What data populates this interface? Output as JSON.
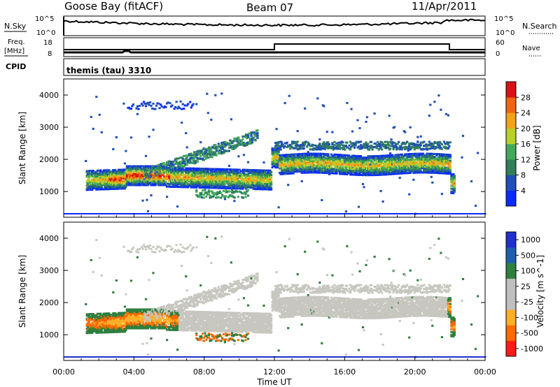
{
  "header": {
    "station": "Goose Bay (fitACF)",
    "beam": "Beam 07",
    "date": "11/Apr/2011"
  },
  "top_panels": {
    "nsky_label": "N.Sky",
    "nsearch_label": "N.Search",
    "nsky_ticks": [
      "10^5",
      "10^0"
    ],
    "nsearch_ticks": [
      "10^5",
      "10^0"
    ],
    "freq_label": "Freq.",
    "freq_unit": "[MHz]",
    "freq_ticks": [
      "18",
      "8"
    ],
    "nave_label": "Nave",
    "nave_ticks": [
      "60",
      "0"
    ],
    "cpid_label": "CPID",
    "cpid_value": "themis (tau) 3310"
  },
  "colors": {
    "power_scale": [
      "#0a2bff",
      "#1f4fb8",
      "#2f7f5a",
      "#44a85a",
      "#b8cf2e",
      "#f1a21a",
      "#ee6611",
      "#d61414"
    ],
    "velocity_scale": [
      "#ff1a1a",
      "#ff6a00",
      "#ffae2a",
      "#bfbfbf",
      "#bfbfbf",
      "#2f7f3f",
      "#1f5faf",
      "#2030c8"
    ],
    "ground_scatter": "#c7c7c0"
  },
  "chart_data": [
    {
      "type": "heatmap",
      "title": "Power",
      "xlabel": "",
      "ylabel": "Slant Range [km]",
      "x_ticks": [
        "00:00",
        "04:00",
        "08:00",
        "12:00",
        "16:00",
        "20:00",
        "00:00"
      ],
      "y_ticks": [
        "1000",
        "2000",
        "3000",
        "4000"
      ],
      "ylim": [
        200,
        4500
      ],
      "colorbar": {
        "label": "Power [dB]",
        "ticks": [
          "4",
          "8",
          "12",
          "16",
          "20",
          "24",
          "28"
        ]
      }
    },
    {
      "type": "heatmap",
      "title": "Velocity",
      "xlabel": "Time UT",
      "ylabel": "Slant Range [km]",
      "x_ticks": [
        "00:00",
        "04:00",
        "08:00",
        "12:00",
        "16:00",
        "20:00",
        "00:00"
      ],
      "y_ticks": [
        "1000",
        "2000",
        "3000",
        "4000"
      ],
      "ylim": [
        200,
        4500
      ],
      "colorbar": {
        "label": "Velocity [m s^-1]",
        "ticks": [
          "1000",
          "500",
          "100",
          "25",
          "-25",
          "-100",
          "-500",
          "-1000"
        ]
      }
    }
  ]
}
